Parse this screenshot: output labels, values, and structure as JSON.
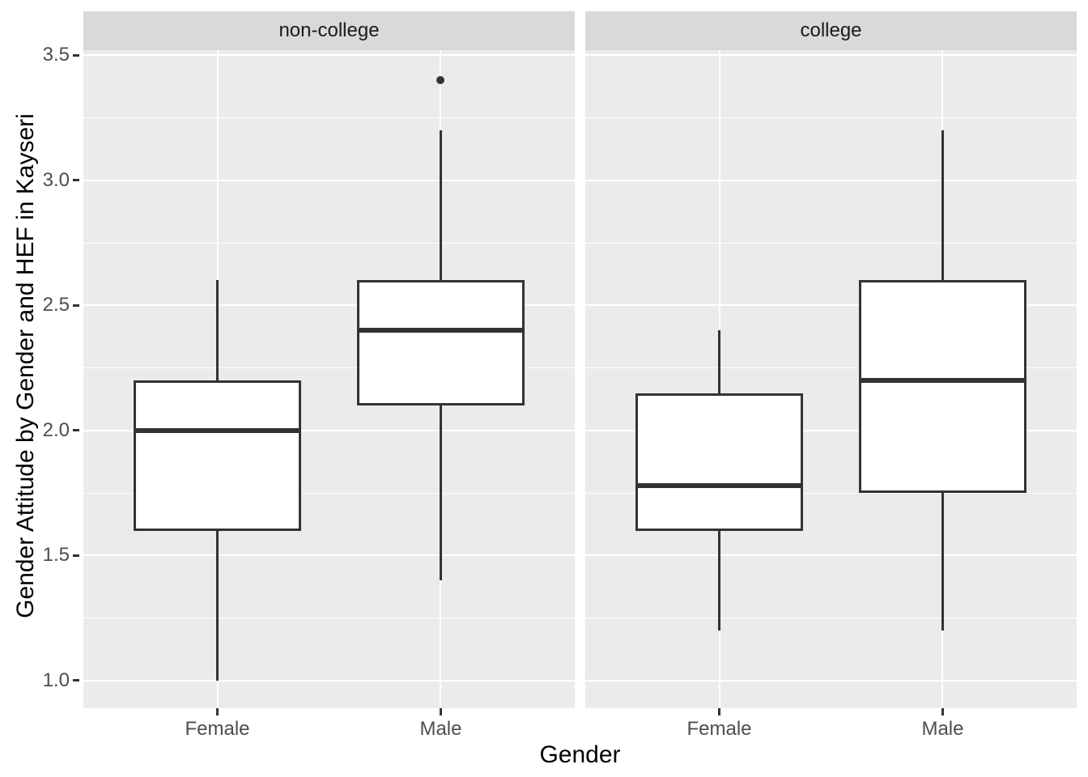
{
  "chart_data": {
    "type": "boxplot",
    "title": "",
    "xlabel": "Gender",
    "ylabel": "Gender Attitude by Gender and HEF in Kayseri",
    "facets": [
      "non-college",
      "college"
    ],
    "categories": [
      "Female",
      "Male"
    ],
    "y_ticks": [
      1.0,
      1.5,
      2.0,
      2.5,
      3.0,
      3.5
    ],
    "y_tick_labels": [
      "1.0",
      "1.5",
      "2.0",
      "2.5",
      "3.0",
      "3.5"
    ],
    "y_minor_ticks": [
      1.25,
      1.75,
      2.25,
      2.75,
      3.25
    ],
    "y_domain": [
      0.89,
      3.52
    ],
    "grid": true,
    "legend_position": "none",
    "boxes": [
      {
        "facet": "non-college",
        "category": "Female",
        "whisker_low": 1.0,
        "q1": 1.6,
        "median": 2.0,
        "q3": 2.2,
        "whisker_high": 2.6,
        "outliers": []
      },
      {
        "facet": "non-college",
        "category": "Male",
        "whisker_low": 1.4,
        "q1": 2.1,
        "median": 2.4,
        "q3": 2.6,
        "whisker_high": 3.2,
        "outliers": [
          3.4
        ]
      },
      {
        "facet": "college",
        "category": "Female",
        "whisker_low": 1.2,
        "q1": 1.6,
        "median": 1.78,
        "q3": 2.15,
        "whisker_high": 2.4,
        "outliers": []
      },
      {
        "facet": "college",
        "category": "Male",
        "whisker_low": 1.2,
        "q1": 1.75,
        "median": 2.2,
        "q3": 2.6,
        "whisker_high": 3.2,
        "outliers": []
      }
    ],
    "colors": {
      "panel_background": "#EBEBEB",
      "strip_background": "#D9D9D9",
      "gridline": "#FFFFFF",
      "box_border": "#333333",
      "box_fill": "#FFFFFF",
      "tick_label": "#4D4D4D",
      "axis_title": "#000000",
      "strip_text": "#1A1A1A"
    }
  }
}
